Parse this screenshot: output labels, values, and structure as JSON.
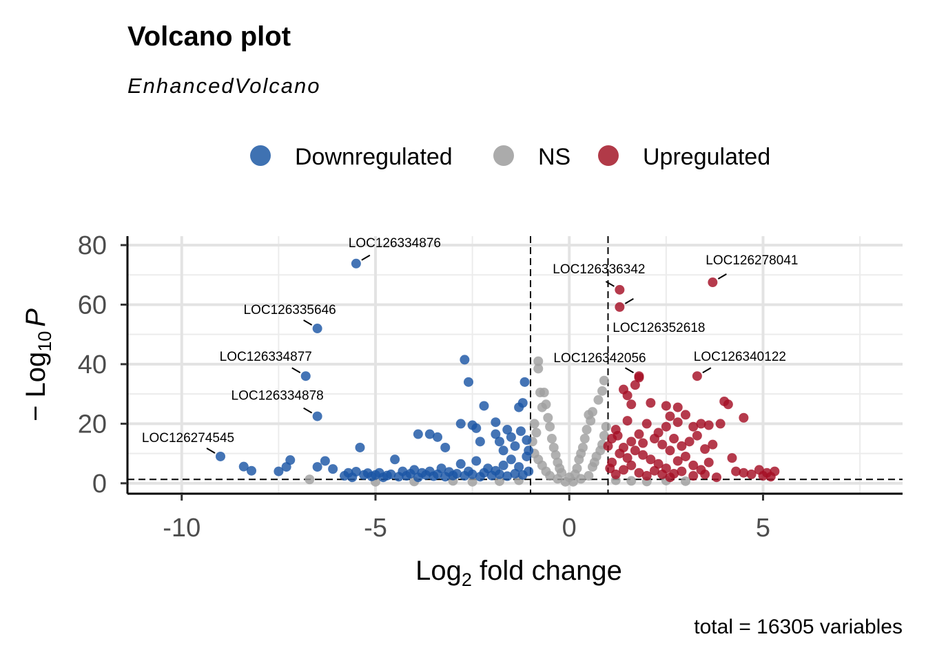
{
  "chart_data": {
    "type": "scatter",
    "title": "Volcano plot",
    "subtitle": "EnhancedVolcano",
    "caption": "total = 16305 variables",
    "xlabel": {
      "base": "Log",
      "sub": "2",
      "rest": " fold change"
    },
    "ylabel": {
      "prefix": "− Log",
      "sub": "10",
      "var": "P"
    },
    "xlim": [
      -11.4,
      8.6
    ],
    "ylim": [
      -3.5,
      83
    ],
    "x_ticks": [
      -10,
      -5,
      0,
      5
    ],
    "x_tick_labels": [
      "-10",
      "-5",
      "0",
      "5"
    ],
    "y_ticks": [
      0,
      20,
      40,
      60,
      80
    ],
    "y_tick_labels": [
      "0",
      "20",
      "40",
      "60",
      "80"
    ],
    "thresholds": {
      "fc_cutoff": [
        -1,
        1
      ],
      "p_cutoff": 1.3
    },
    "legend": {
      "position": "top",
      "entries": [
        {
          "key": "down",
          "label": "Downregulated",
          "color": "#1B55A5"
        },
        {
          "key": "ns",
          "label": "NS",
          "color": "#A0A0A0"
        },
        {
          "key": "up",
          "label": "Upregulated",
          "color": "#A50F24"
        }
      ]
    },
    "series": [
      {
        "name": "Downregulated",
        "color": "#1B55A5",
        "points": [
          [
            -9.0,
            9.0
          ],
          [
            -8.4,
            5.6
          ],
          [
            -8.2,
            4.2
          ],
          [
            -7.5,
            4.0
          ],
          [
            -7.3,
            5.5
          ],
          [
            -7.2,
            7.8
          ],
          [
            -6.5,
            5.5
          ],
          [
            -6.3,
            7.5
          ],
          [
            -6.1,
            4.8
          ],
          [
            -5.8,
            2.5
          ],
          [
            -5.7,
            3.5
          ],
          [
            -5.6,
            2.0
          ],
          [
            -5.5,
            3.9
          ],
          [
            -5.4,
            12.0
          ],
          [
            -5.3,
            2.8
          ],
          [
            -5.2,
            3.4
          ],
          [
            -5.1,
            2.3
          ],
          [
            -5.0,
            2.8
          ],
          [
            -4.9,
            3.5
          ],
          [
            -4.8,
            2.0
          ],
          [
            -4.7,
            2.6
          ],
          [
            -4.6,
            3.0
          ],
          [
            -4.5,
            8.0
          ],
          [
            -4.4,
            2.2
          ],
          [
            -4.3,
            4.0
          ],
          [
            -4.2,
            2.5
          ],
          [
            -4.1,
            3.2
          ],
          [
            -4.0,
            4.5
          ],
          [
            -3.9,
            2.0
          ],
          [
            -3.8,
            3.5
          ],
          [
            -3.7,
            2.8
          ],
          [
            -3.6,
            4.0
          ],
          [
            -3.5,
            2.4
          ],
          [
            -3.4,
            3.0
          ],
          [
            -3.3,
            5.0
          ],
          [
            -3.2,
            2.2
          ],
          [
            -3.1,
            3.8
          ],
          [
            -3.0,
            2.6
          ],
          [
            -2.9,
            3.2
          ],
          [
            -2.8,
            6.5
          ],
          [
            -2.7,
            2.5
          ],
          [
            -2.6,
            4.0
          ],
          [
            -2.5,
            3.0
          ],
          [
            -2.4,
            7.5
          ],
          [
            -2.3,
            2.2
          ],
          [
            -2.2,
            3.5
          ],
          [
            -2.1,
            5.0
          ],
          [
            -2.0,
            2.6
          ],
          [
            -1.9,
            4.2
          ],
          [
            -1.8,
            3.0
          ],
          [
            -1.7,
            6.0
          ],
          [
            -1.6,
            2.4
          ],
          [
            -1.5,
            8.0
          ],
          [
            -1.4,
            3.2
          ],
          [
            -1.3,
            5.5
          ],
          [
            -1.2,
            2.8
          ],
          [
            -1.1,
            9.0
          ],
          [
            -1.05,
            4.0
          ],
          [
            -3.9,
            16.5
          ],
          [
            -3.6,
            16.5
          ],
          [
            -3.4,
            15.5
          ],
          [
            -3.2,
            12.0
          ],
          [
            -2.8,
            20.0
          ],
          [
            -2.5,
            19.5
          ],
          [
            -2.4,
            18.5
          ],
          [
            -2.3,
            14.0
          ],
          [
            -2.2,
            26.0
          ],
          [
            -1.9,
            20.5
          ],
          [
            -1.9,
            16.5
          ],
          [
            -1.8,
            14.0
          ],
          [
            -1.7,
            11.0
          ],
          [
            -1.6,
            18.0
          ],
          [
            -1.5,
            15.5
          ],
          [
            -1.4,
            12.5
          ],
          [
            -1.3,
            25.5
          ],
          [
            -1.2,
            27.0
          ],
          [
            -1.15,
            34.0
          ],
          [
            -1.25,
            17.5
          ],
          [
            -1.1,
            14.5
          ],
          [
            -1.05,
            11.0
          ],
          [
            -2.6,
            34.0
          ],
          [
            -2.7,
            41.5
          ],
          [
            -5.5,
            73.8
          ],
          [
            -6.5,
            52.0
          ],
          [
            -6.8,
            36.0
          ],
          [
            -6.5,
            22.5
          ]
        ]
      },
      {
        "name": "NS",
        "color": "#A0A0A0",
        "points": [
          [
            -6.7,
            1.3
          ],
          [
            -0.8,
            41.0
          ],
          [
            -0.8,
            38.5
          ],
          [
            -0.75,
            30.5
          ],
          [
            -0.65,
            30.5
          ],
          [
            -0.7,
            25.5
          ],
          [
            -0.6,
            26.5
          ],
          [
            -0.55,
            22.0
          ],
          [
            -0.5,
            19.0
          ],
          [
            -0.45,
            15.0
          ],
          [
            -0.4,
            12.0
          ],
          [
            -0.35,
            9.5
          ],
          [
            -0.3,
            7.0
          ],
          [
            -0.25,
            5.0
          ],
          [
            -0.2,
            3.5
          ],
          [
            -0.9,
            20.0
          ],
          [
            -0.85,
            17.0
          ],
          [
            -0.95,
            14.0
          ],
          [
            -0.9,
            10.0
          ],
          [
            -0.8,
            8.0
          ],
          [
            -0.7,
            6.0
          ],
          [
            -0.6,
            4.0
          ],
          [
            0.9,
            34.5
          ],
          [
            0.85,
            31.0
          ],
          [
            0.75,
            28.0
          ],
          [
            0.6,
            24.0
          ],
          [
            0.55,
            21.0
          ],
          [
            0.5,
            23.0
          ],
          [
            0.45,
            18.0
          ],
          [
            0.4,
            15.0
          ],
          [
            0.35,
            12.0
          ],
          [
            0.3,
            10.0
          ],
          [
            0.25,
            8.0
          ],
          [
            0.2,
            5.0
          ],
          [
            0.15,
            3.0
          ],
          [
            0.95,
            19.0
          ],
          [
            0.9,
            16.0
          ],
          [
            0.85,
            13.0
          ],
          [
            0.8,
            11.0
          ],
          [
            0.7,
            9.0
          ],
          [
            0.65,
            7.0
          ],
          [
            0.6,
            5.5
          ],
          [
            1.2,
            1.0
          ],
          [
            1.6,
            0.8
          ],
          [
            2.0,
            0.6
          ],
          [
            -1.3,
            1.0
          ],
          [
            -1.8,
            0.7
          ],
          [
            -2.5,
            0.5
          ],
          [
            -3.0,
            0.8
          ],
          [
            -4.0,
            0.6
          ],
          [
            -5.0,
            0.5
          ],
          [
            2.5,
            0.9
          ],
          [
            3.0,
            0.7
          ],
          [
            -0.3,
            1.5
          ],
          [
            0.3,
            1.5
          ],
          [
            0.1,
            0.5
          ],
          [
            -0.1,
            0.5
          ],
          [
            0.0,
            2.0
          ],
          [
            -0.5,
            2.5
          ],
          [
            0.5,
            2.5
          ]
        ]
      },
      {
        "name": "Upregulated",
        "color": "#A50F24",
        "points": [
          [
            1.3,
            65.0
          ],
          [
            1.3,
            59.2
          ],
          [
            1.8,
            36.0
          ],
          [
            3.3,
            36.0
          ],
          [
            3.7,
            67.5
          ],
          [
            1.4,
            31.5
          ],
          [
            1.8,
            35.5
          ],
          [
            1.7,
            33.0
          ],
          [
            1.5,
            29.5
          ],
          [
            1.6,
            26.5
          ],
          [
            2.1,
            27.0
          ],
          [
            2.5,
            26.0
          ],
          [
            2.8,
            25.5
          ],
          [
            2.6,
            22.5
          ],
          [
            3.0,
            23.0
          ],
          [
            2.5,
            19.0
          ],
          [
            2.8,
            20.5
          ],
          [
            3.2,
            19.0
          ],
          [
            3.4,
            20.0
          ],
          [
            3.6,
            19.5
          ],
          [
            2.0,
            20.0
          ],
          [
            1.5,
            21.0
          ],
          [
            1.2,
            18.0
          ],
          [
            1.1,
            15.0
          ],
          [
            1.4,
            12.0
          ],
          [
            1.6,
            14.0
          ],
          [
            1.8,
            16.5
          ],
          [
            2.2,
            15.0
          ],
          [
            2.4,
            13.0
          ],
          [
            2.6,
            11.0
          ],
          [
            2.9,
            12.5
          ],
          [
            3.1,
            14.0
          ],
          [
            3.3,
            16.0
          ],
          [
            3.5,
            11.5
          ],
          [
            3.7,
            13.0
          ],
          [
            3.9,
            20.0
          ],
          [
            4.1,
            26.5
          ],
          [
            4.0,
            27.5
          ],
          [
            4.5,
            22.0
          ],
          [
            4.2,
            8.5
          ],
          [
            4.3,
            4.0
          ],
          [
            4.5,
            3.5
          ],
          [
            4.7,
            3.0
          ],
          [
            4.9,
            4.5
          ],
          [
            5.1,
            3.5
          ],
          [
            5.3,
            4.0
          ],
          [
            5.0,
            2.5
          ],
          [
            5.2,
            2.2
          ],
          [
            3.8,
            2.0
          ],
          [
            3.5,
            3.0
          ],
          [
            3.2,
            2.5
          ],
          [
            2.9,
            4.0
          ],
          [
            2.7,
            3.2
          ],
          [
            2.5,
            5.0
          ],
          [
            2.3,
            6.5
          ],
          [
            2.1,
            8.0
          ],
          [
            1.9,
            9.5
          ],
          [
            1.7,
            11.0
          ],
          [
            1.5,
            8.5
          ],
          [
            1.3,
            10.0
          ],
          [
            1.1,
            7.0
          ],
          [
            1.05,
            5.0
          ],
          [
            1.2,
            3.0
          ],
          [
            1.4,
            4.5
          ],
          [
            1.6,
            6.0
          ],
          [
            1.8,
            3.5
          ],
          [
            2.0,
            2.5
          ],
          [
            2.2,
            4.2
          ],
          [
            2.4,
            3.0
          ],
          [
            2.6,
            2.0
          ],
          [
            2.8,
            7.5
          ],
          [
            3.0,
            9.0
          ],
          [
            3.2,
            6.0
          ],
          [
            3.4,
            4.5
          ],
          [
            3.6,
            7.0
          ],
          [
            1.0,
            12.5
          ],
          [
            1.25,
            16.0
          ],
          [
            1.9,
            13.5
          ],
          [
            2.3,
            17.0
          ],
          [
            2.7,
            15.0
          ]
        ]
      }
    ],
    "labels": [
      {
        "text": "LOC126334876",
        "x": -5.5,
        "y": 73.8
      },
      {
        "text": "LOC126335646",
        "x": -6.5,
        "y": 52.0
      },
      {
        "text": "LOC126334877",
        "x": -6.8,
        "y": 36.0
      },
      {
        "text": "LOC126334878",
        "x": -6.5,
        "y": 22.5
      },
      {
        "text": "LOC126274545",
        "x": -9.0,
        "y": 9.0
      },
      {
        "text": "LOC126336342",
        "x": 1.3,
        "y": 65.0
      },
      {
        "text": "LOC126352618",
        "x": 1.3,
        "y": 59.2
      },
      {
        "text": "LOC126342056",
        "x": 1.8,
        "y": 36.0
      },
      {
        "text": "LOC126340122",
        "x": 3.3,
        "y": 36.0
      },
      {
        "text": "LOC126278041",
        "x": 3.7,
        "y": 67.5
      }
    ]
  }
}
